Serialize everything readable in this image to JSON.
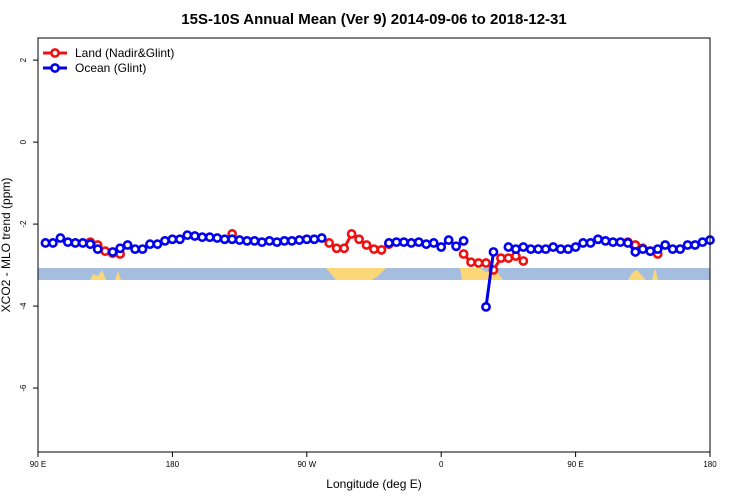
{
  "chart_data": {
    "type": "line",
    "title": "15S-10S Annual Mean (Ver 9)   2014-09-06 to 2018-12-31",
    "x_label": "Longitude (deg E)",
    "y_label": "XCO2 - MLO trend (ppm)",
    "xlim": [
      90,
      540
    ],
    "ylim": [
      -7.56,
      2.54
    ],
    "xticks": [
      {
        "value": 90,
        "label": "90 E"
      },
      180,
      {
        "value": 270,
        "label": "90 W"
      },
      {
        "value": 360,
        "label": "0"
      },
      {
        "value": 450,
        "label": "90 E"
      },
      {
        "value": 540,
        "label": "180"
      }
    ],
    "yticks": [
      2,
      0,
      -2,
      -4,
      -6
    ],
    "legend": "top-left",
    "x": [
      95,
      100,
      105,
      110,
      115,
      120,
      125,
      130,
      135,
      140,
      145,
      150,
      155,
      160,
      165,
      170,
      175,
      180,
      185,
      190,
      195,
      200,
      205,
      210,
      215,
      220,
      225,
      230,
      235,
      240,
      245,
      250,
      255,
      260,
      265,
      270,
      275,
      280,
      285,
      290,
      295,
      300,
      305,
      310,
      315,
      320,
      325,
      330,
      335,
      340,
      345,
      350,
      355,
      360,
      365,
      370,
      375,
      380,
      385,
      390,
      395,
      400,
      405,
      410,
      415,
      420,
      425,
      430,
      435,
      440,
      445,
      450,
      455,
      460,
      465,
      470,
      475,
      480,
      485,
      490,
      495,
      500,
      505,
      510,
      515,
      520,
      525,
      530,
      535,
      540
    ],
    "series": [
      {
        "name": "Land (Nadir&Glint)",
        "color": "#ee1111",
        "values": [
          null,
          null,
          null,
          null,
          null,
          null,
          -2.44,
          -2.51,
          -2.66,
          -2.71,
          -2.73,
          null,
          null,
          null,
          null,
          null,
          null,
          null,
          null,
          null,
          null,
          null,
          null,
          null,
          null,
          -2.24,
          null,
          null,
          null,
          null,
          null,
          null,
          null,
          null,
          null,
          null,
          null,
          null,
          -2.46,
          -2.59,
          -2.59,
          -2.24,
          -2.37,
          -2.51,
          -2.61,
          -2.63,
          -2.49,
          null,
          null,
          null,
          null,
          null,
          null,
          null,
          null,
          null,
          -2.73,
          -2.93,
          -2.95,
          -2.95,
          -3.12,
          -2.83,
          -2.83,
          -2.78,
          -2.9,
          null,
          null,
          null,
          null,
          null,
          null,
          null,
          null,
          null,
          null,
          null,
          null,
          null,
          -2.44,
          -2.51,
          -2.59,
          -2.66,
          -2.73,
          null,
          null,
          null,
          null,
          null,
          null,
          null
        ]
      },
      {
        "name": "Ocean (Glint)",
        "color": "#0000ee",
        "values": [
          -2.46,
          -2.46,
          -2.34,
          -2.44,
          -2.46,
          -2.46,
          -2.49,
          -2.61,
          null,
          -2.68,
          -2.59,
          -2.51,
          -2.61,
          -2.61,
          -2.49,
          -2.49,
          -2.41,
          -2.37,
          -2.37,
          -2.27,
          -2.29,
          -2.32,
          -2.32,
          -2.34,
          -2.37,
          -2.37,
          -2.39,
          -2.41,
          -2.41,
          -2.44,
          -2.41,
          -2.44,
          -2.41,
          -2.41,
          -2.39,
          -2.37,
          -2.37,
          -2.34,
          null,
          null,
          null,
          null,
          null,
          null,
          null,
          null,
          -2.46,
          -2.44,
          -2.44,
          -2.46,
          -2.44,
          -2.49,
          -2.46,
          -2.56,
          -2.39,
          -2.54,
          -2.41,
          null,
          null,
          -4.02,
          -2.68,
          null,
          -2.56,
          -2.61,
          -2.56,
          -2.61,
          -2.61,
          -2.61,
          -2.56,
          -2.61,
          -2.61,
          -2.56,
          -2.46,
          -2.46,
          -2.37,
          -2.41,
          -2.44,
          -2.44,
          -2.46,
          -2.68,
          -2.61,
          -2.66,
          -2.61,
          -2.51,
          -2.61,
          -2.61,
          -2.51,
          -2.51,
          -2.44,
          -2.39
        ]
      }
    ]
  }
}
